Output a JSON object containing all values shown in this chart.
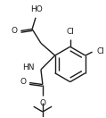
{
  "bg_color": "#ffffff",
  "line_color": "#1a1a1a",
  "line_width": 1.0,
  "font_size": 6.5,
  "fig_width": 1.19,
  "fig_height": 1.32,
  "dpi": 100,
  "xlim": [
    0,
    119
  ],
  "ylim": [
    0,
    132
  ]
}
